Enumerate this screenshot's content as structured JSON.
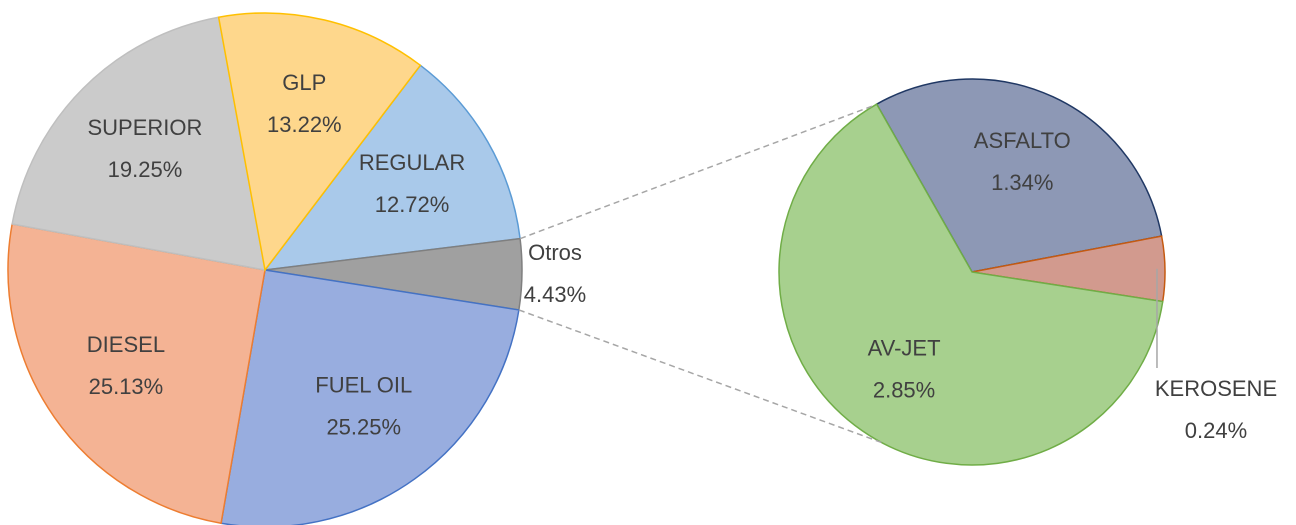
{
  "chart_data": [
    {
      "type": "pie",
      "categories": [
        "REGULAR",
        "Otros",
        "FUEL OIL",
        "DIESEL",
        "SUPERIOR",
        "GLP"
      ],
      "values": [
        12.72,
        4.43,
        25.25,
        25.13,
        19.25,
        13.22
      ],
      "value_labels": [
        "12.72%",
        "4.43%",
        "25.25%",
        "25.13%",
        "19.25%",
        "13.22%"
      ],
      "colors": [
        "#a9c9ea",
        "#a0a0a0",
        "#98addf",
        "#f4b394",
        "#cbcbcb",
        "#fed78c"
      ]
    },
    {
      "type": "pie",
      "categories": [
        "ASFALTO",
        "KEROSENE",
        "AV-JET"
      ],
      "values": [
        1.34,
        0.24,
        2.85
      ],
      "value_labels": [
        "1.34%",
        "0.24%",
        "2.85%"
      ],
      "colors": [
        "#8d98b5",
        "#d29a8e",
        "#a7d08e"
      ]
    }
  ]
}
